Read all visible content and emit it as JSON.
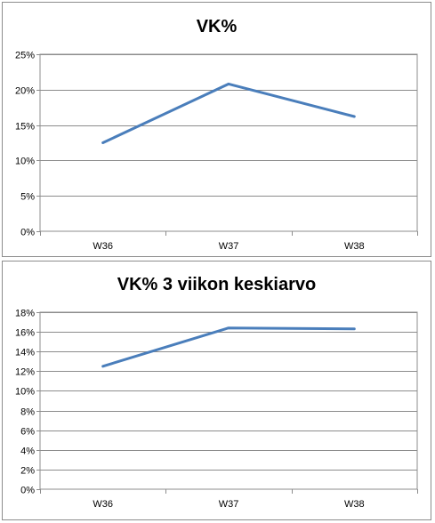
{
  "chart_data": [
    {
      "type": "line",
      "title": "VK%",
      "categories": [
        "W36",
        "W37",
        "W38"
      ],
      "series": [
        {
          "values": [
            12.5,
            20.8,
            16.2
          ]
        }
      ],
      "ylim": [
        0,
        25
      ],
      "yticks": [
        0,
        5,
        10,
        15,
        20,
        25
      ],
      "ytick_labels": [
        "0%",
        "5%",
        "10%",
        "15%",
        "20%",
        "25%"
      ],
      "grid": true,
      "line_color": "#4a7ebb"
    },
    {
      "type": "line",
      "title": "VK% 3 viikon keskiarvo",
      "categories": [
        "W36",
        "W37",
        "W38"
      ],
      "series": [
        {
          "values": [
            12.5,
            16.4,
            16.3
          ]
        }
      ],
      "ylim": [
        0,
        18
      ],
      "yticks": [
        0,
        2,
        4,
        6,
        8,
        10,
        12,
        14,
        16,
        18
      ],
      "ytick_labels": [
        "0%",
        "2%",
        "4%",
        "6%",
        "8%",
        "10%",
        "12%",
        "14%",
        "16%",
        "18%"
      ],
      "grid": true,
      "line_color": "#4a7ebb"
    }
  ]
}
